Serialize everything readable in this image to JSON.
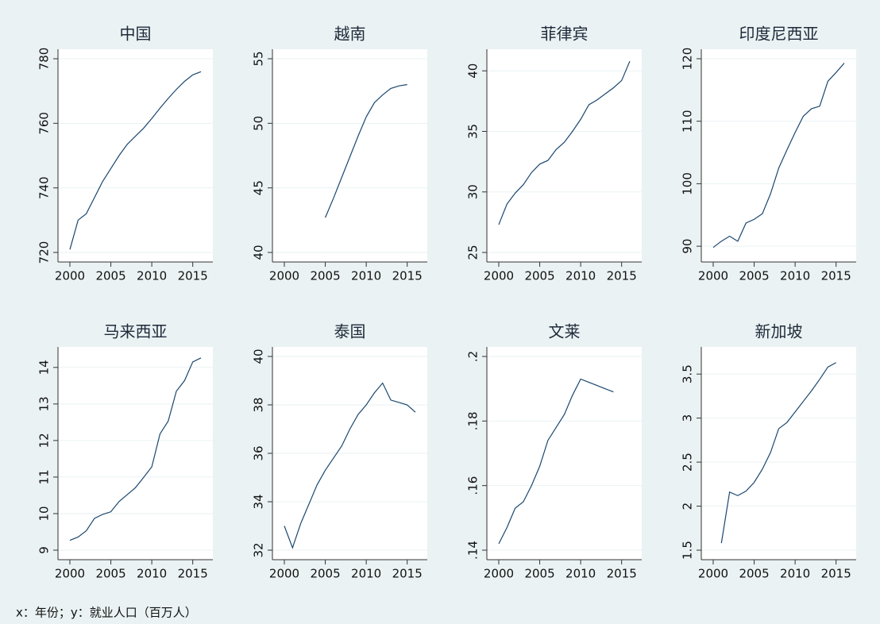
{
  "chart_data": [
    {
      "type": "line",
      "title": "中国",
      "color": "#1a476f",
      "x": [
        2000,
        2001,
        2002,
        2003,
        2004,
        2005,
        2006,
        2007,
        2008,
        2009,
        2010,
        2011,
        2012,
        2013,
        2014,
        2015,
        2016
      ],
      "values": [
        720.9,
        730,
        732,
        737,
        742,
        746,
        750,
        753.5,
        756,
        758.5,
        761.5,
        764.7,
        767.7,
        770.5,
        773,
        775,
        776
      ],
      "xlim": [
        2000,
        2016
      ],
      "xticks": [
        2000,
        2005,
        2010,
        2015
      ],
      "ylim": [
        720,
        780
      ],
      "yticks": [
        720,
        740,
        760,
        780
      ],
      "grid": true
    },
    {
      "type": "line",
      "title": "越南",
      "color": "#1a476f",
      "x": [
        2000,
        2001,
        2002,
        2003,
        2004,
        2005,
        2006,
        2007,
        2008,
        2009,
        2010,
        2011,
        2012,
        2013,
        2014,
        2015,
        2016
      ],
      "values": [
        null,
        null,
        null,
        null,
        null,
        42.7,
        44.2,
        45.8,
        47.4,
        49,
        50.5,
        51.6,
        52.2,
        52.7,
        52.9,
        53,
        null
      ],
      "xlim": [
        2000,
        2016
      ],
      "xticks": [
        2000,
        2005,
        2010,
        2015
      ],
      "ylim": [
        40,
        55
      ],
      "yticks": [
        40,
        45,
        50,
        55
      ],
      "grid": true
    },
    {
      "type": "line",
      "title": "菲律宾",
      "color": "#1a476f",
      "x": [
        2000,
        2001,
        2002,
        2003,
        2004,
        2005,
        2006,
        2007,
        2008,
        2009,
        2010,
        2011,
        2012,
        2013,
        2014,
        2015,
        2016
      ],
      "values": [
        27.3,
        29,
        29.9,
        30.6,
        31.6,
        32.3,
        32.6,
        33.5,
        34.1,
        35,
        36,
        37.2,
        37.6,
        38.1,
        38.6,
        39.2,
        40.8
      ],
      "xlim": [
        2000,
        2016
      ],
      "xticks": [
        2000,
        2005,
        2010,
        2015
      ],
      "ylim": [
        25,
        41
      ],
      "yticks": [
        25,
        30,
        35,
        40
      ],
      "grid": true
    },
    {
      "type": "line",
      "title": "印度尼西亚",
      "color": "#1a476f",
      "x": [
        2000,
        2001,
        2002,
        2003,
        2004,
        2005,
        2006,
        2007,
        2008,
        2009,
        2010,
        2011,
        2012,
        2013,
        2014,
        2015,
        2016
      ],
      "values": [
        89.8,
        90.8,
        91.6,
        90.8,
        93.7,
        94.3,
        95.2,
        98.4,
        102.5,
        105.4,
        108.2,
        110.8,
        112,
        112.4,
        116.4,
        117.8,
        119.3
      ],
      "xlim": [
        2000,
        2016
      ],
      "xticks": [
        2000,
        2005,
        2010,
        2015
      ],
      "ylim": [
        89,
        120
      ],
      "yticks": [
        90,
        100,
        110,
        120
      ],
      "grid": true
    },
    {
      "type": "line",
      "title": "马来西亚",
      "color": "#1a476f",
      "x": [
        2000,
        2001,
        2002,
        2003,
        2004,
        2005,
        2006,
        2007,
        2008,
        2009,
        2010,
        2011,
        2012,
        2013,
        2014,
        2015,
        2016
      ],
      "values": [
        9.27,
        9.36,
        9.53,
        9.87,
        9.98,
        10.05,
        10.33,
        10.52,
        10.71,
        10.99,
        11.28,
        12.18,
        12.53,
        13.35,
        13.64,
        14.15,
        14.26
      ],
      "xlim": [
        2000,
        2016
      ],
      "xticks": [
        2000,
        2005,
        2010,
        2015
      ],
      "ylim": [
        9,
        14.3
      ],
      "yticks": [
        9,
        10,
        11,
        12,
        13,
        14
      ],
      "grid": true
    },
    {
      "type": "line",
      "title": "泰国",
      "color": "#1a476f",
      "x": [
        2000,
        2001,
        2002,
        2003,
        2004,
        2005,
        2006,
        2007,
        2008,
        2009,
        2010,
        2011,
        2012,
        2013,
        2014,
        2015,
        2016
      ],
      "values": [
        33,
        32.1,
        33.1,
        33.9,
        34.7,
        35.3,
        35.8,
        36.3,
        37,
        37.6,
        38,
        38.5,
        38.9,
        38.2,
        38.1,
        38,
        37.7
      ],
      "xlim": [
        2000,
        2016
      ],
      "xticks": [
        2000,
        2005,
        2010,
        2015
      ],
      "ylim": [
        32,
        40
      ],
      "yticks": [
        32,
        34,
        36,
        38,
        40
      ],
      "grid": true
    },
    {
      "type": "line",
      "title": "文莱",
      "color": "#1a476f",
      "x": [
        2000,
        2001,
        2002,
        2003,
        2004,
        2005,
        2006,
        2007,
        2008,
        2009,
        2010,
        2011,
        2012,
        2013,
        2014,
        2015,
        2016
      ],
      "values": [
        0.142,
        0.147,
        0.153,
        0.155,
        0.16,
        0.166,
        0.174,
        0.178,
        0.182,
        0.188,
        0.193,
        0.192,
        0.191,
        0.19,
        0.189,
        null,
        null
      ],
      "xlim": [
        2000,
        2016
      ],
      "xticks": [
        2000,
        2005,
        2010,
        2015
      ],
      "ylim": [
        0.14,
        0.2
      ],
      "yticks": [
        {
          "value": 0.14,
          "label": ".14"
        },
        {
          "value": 0.16,
          "label": ".16"
        },
        {
          "value": 0.18,
          "label": ".18"
        },
        {
          "value": 0.2,
          "label": ".2"
        }
      ],
      "grid": true
    },
    {
      "type": "line",
      "title": "新加坡",
      "color": "#1a476f",
      "x": [
        2000,
        2001,
        2002,
        2003,
        2004,
        2005,
        2006,
        2007,
        2008,
        2009,
        2010,
        2011,
        2012,
        2013,
        2014,
        2015,
        2016
      ],
      "values": [
        null,
        1.58,
        2.16,
        2.12,
        2.17,
        2.27,
        2.42,
        2.61,
        2.88,
        2.95,
        3.07,
        3.19,
        3.31,
        3.44,
        3.58,
        3.63,
        null
      ],
      "xlim": [
        2000,
        2016
      ],
      "xticks": [
        2000,
        2005,
        2010,
        2015
      ],
      "ylim": [
        1.5,
        3.7
      ],
      "yticks": [
        1.5,
        2,
        2.5,
        3,
        3.5
      ],
      "grid": true
    }
  ],
  "note": "x：年份；y：就业人口（百万人）"
}
